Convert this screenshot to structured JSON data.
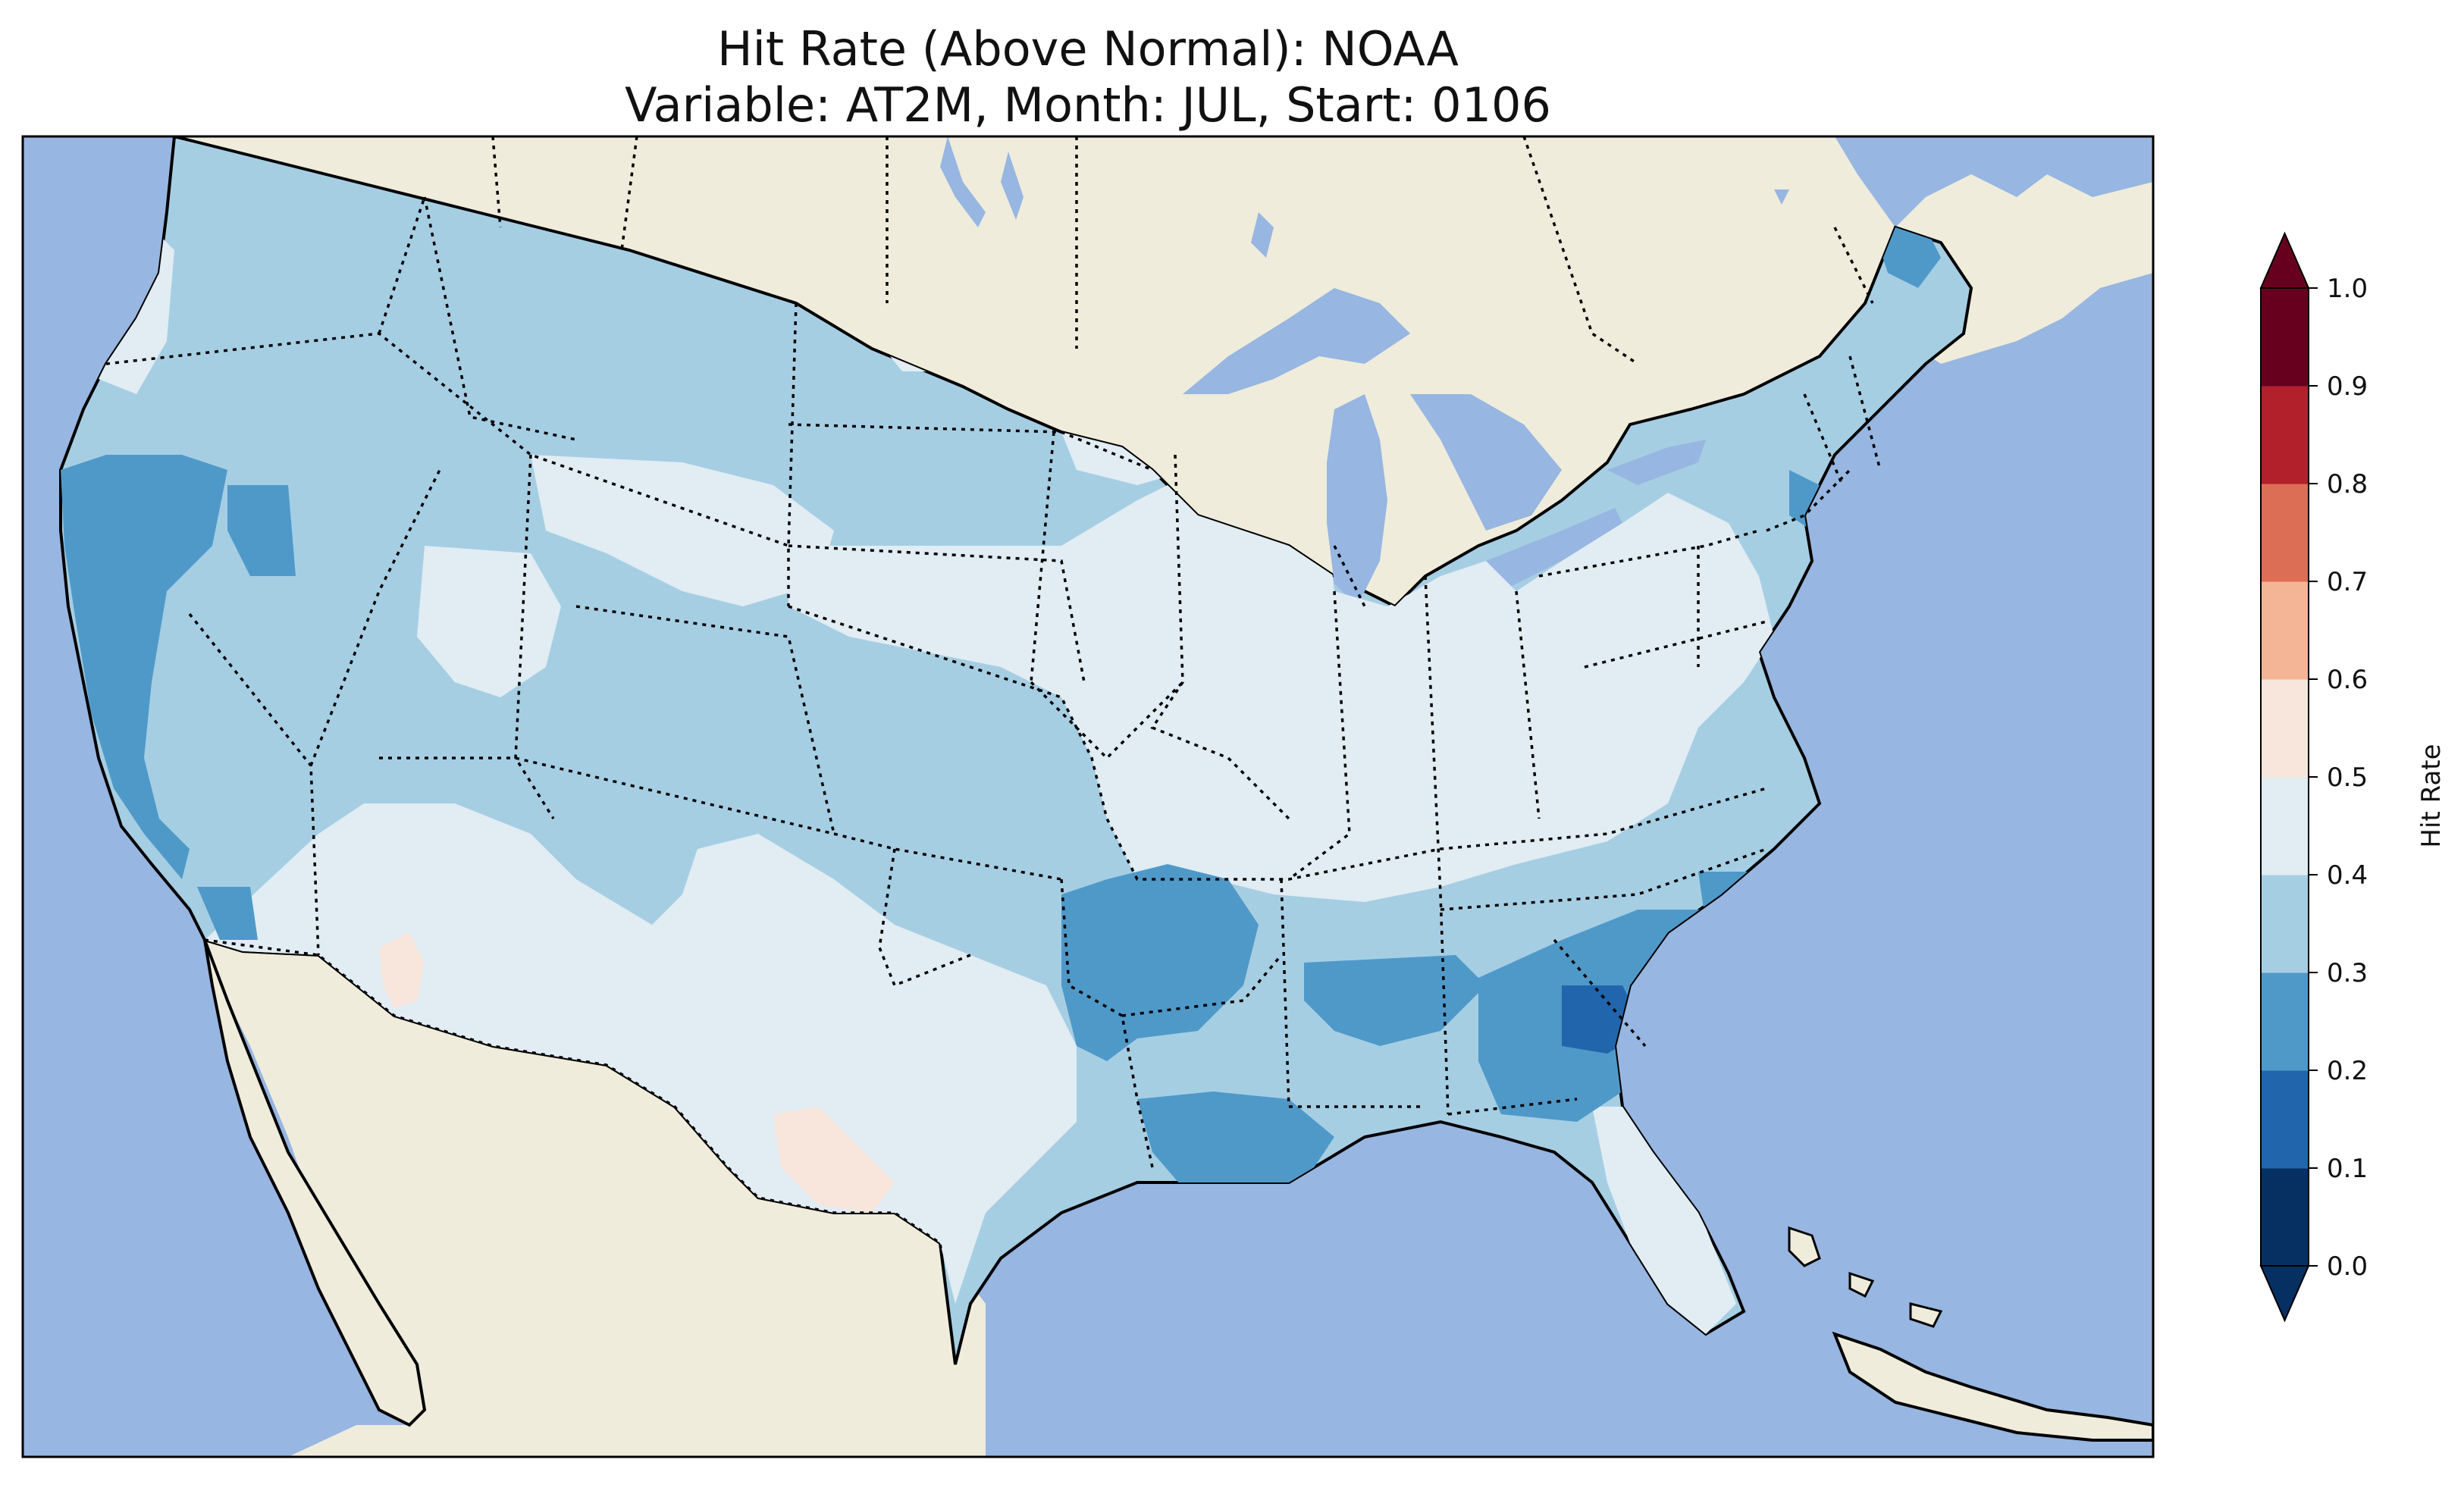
{
  "title": {
    "line1": "Hit Rate (Above Normal): NOAA",
    "line2": "Variable: AT2M, Month: JUL, Start: 0106"
  },
  "colorbar": {
    "label": "Hit Rate",
    "ticks": [
      "0.0",
      "0.1",
      "0.2",
      "0.3",
      "0.4",
      "0.5",
      "0.6",
      "0.7",
      "0.8",
      "0.9",
      "1.0"
    ],
    "bins": [
      {
        "range": [
          0.0,
          0.1
        ],
        "color": "#053061"
      },
      {
        "range": [
          0.1,
          0.2
        ],
        "color": "#2166ac"
      },
      {
        "range": [
          0.2,
          0.3
        ],
        "color": "#4f99c9"
      },
      {
        "range": [
          0.3,
          0.4
        ],
        "color": "#a6cee3"
      },
      {
        "range": [
          0.4,
          0.5
        ],
        "color": "#e1ecf3"
      },
      {
        "range": [
          0.5,
          0.6
        ],
        "color": "#f8e6dc"
      },
      {
        "range": [
          0.6,
          0.7
        ],
        "color": "#f4b596"
      },
      {
        "range": [
          0.7,
          0.8
        ],
        "color": "#dc6e55"
      },
      {
        "range": [
          0.8,
          0.9
        ],
        "color": "#b2202c"
      },
      {
        "range": [
          0.9,
          1.0
        ],
        "color": "#67001f"
      }
    ]
  },
  "map": {
    "ocean_color": "#97b6e1",
    "land_color": "#efecdc",
    "regions": [
      {
        "name": "Pacific Northwest",
        "hit_rate_bin": [
          0.3,
          0.4
        ]
      },
      {
        "name": "California coast",
        "hit_rate_bin": [
          0.2,
          0.3
        ]
      },
      {
        "name": "Northern Plains",
        "hit_rate_bin": [
          0.3,
          0.4
        ]
      },
      {
        "name": "Central Plains and Midwest",
        "hit_rate_bin": [
          0.4,
          0.5
        ]
      },
      {
        "name": "Desert Southwest",
        "hit_rate_bin": [
          0.4,
          0.5
        ]
      },
      {
        "name": "Southern Arizona",
        "hit_rate_bin": [
          0.5,
          0.6
        ]
      },
      {
        "name": "Central Texas",
        "hit_rate_bin": [
          0.5,
          0.6
        ]
      },
      {
        "name": "Oklahoma-Arkansas",
        "hit_rate_bin": [
          0.2,
          0.3
        ]
      },
      {
        "name": "Louisiana coast",
        "hit_rate_bin": [
          0.2,
          0.3
        ]
      },
      {
        "name": "Georgia-South Carolina",
        "hit_rate_bin": [
          0.2,
          0.3
        ]
      },
      {
        "name": "Southern Georgia",
        "hit_rate_bin": [
          0.1,
          0.2
        ]
      },
      {
        "name": "Florida",
        "hit_rate_bin": [
          0.4,
          0.5
        ]
      },
      {
        "name": "Northeast",
        "hit_rate_bin": [
          0.3,
          0.4
        ]
      },
      {
        "name": "Northern Maine",
        "hit_rate_bin": [
          0.2,
          0.3
        ]
      }
    ]
  }
}
